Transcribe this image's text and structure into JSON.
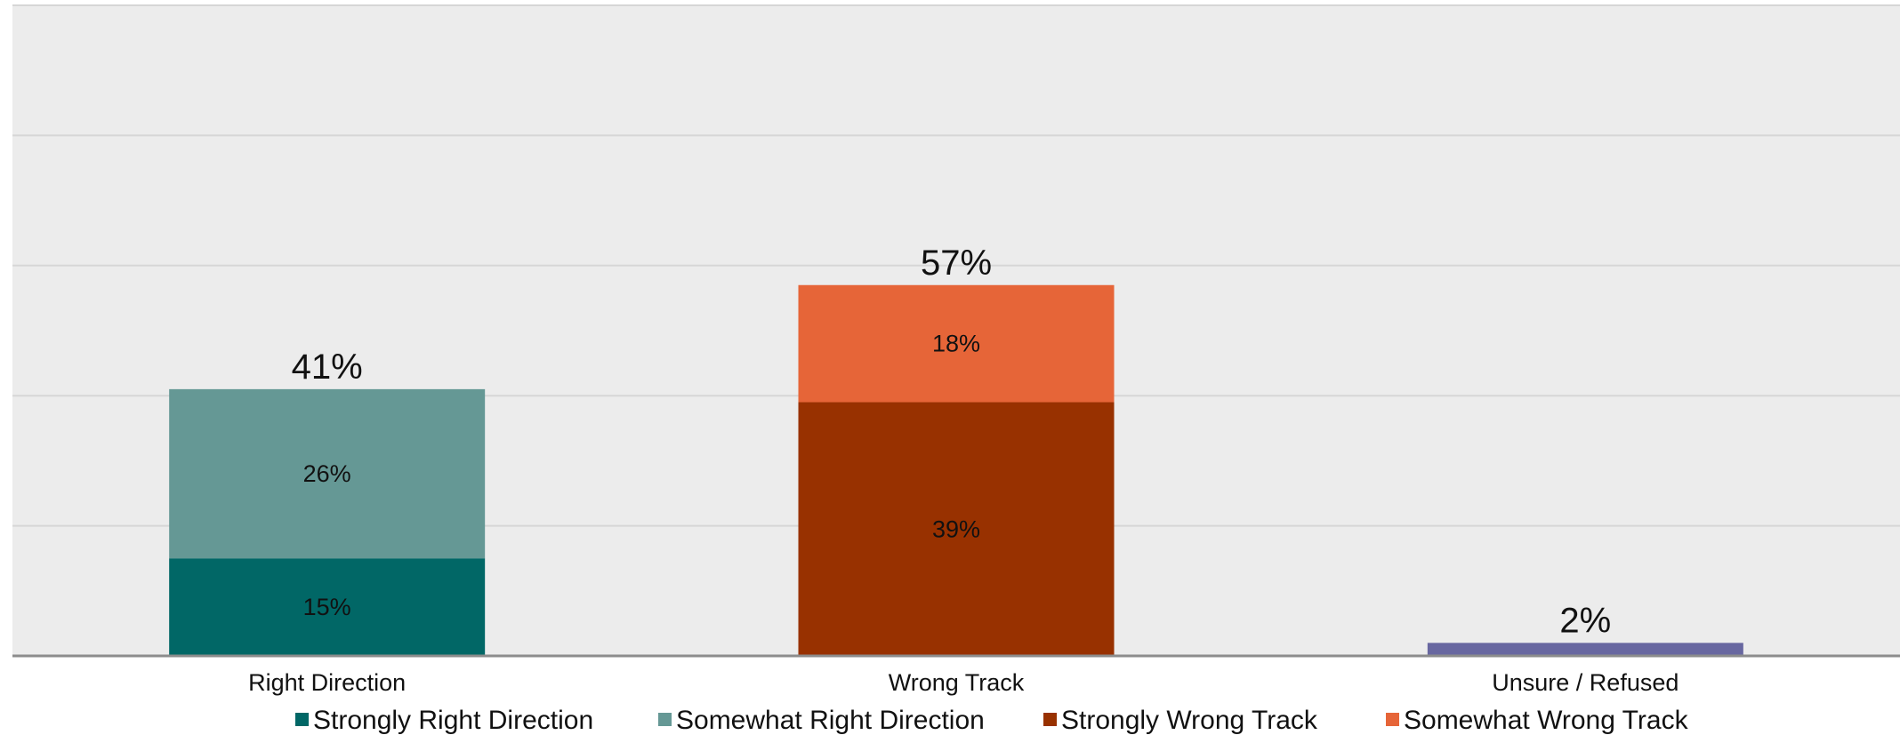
{
  "chart_data": {
    "type": "bar",
    "stacked": true,
    "categories": [
      "Right Direction",
      "Wrong Track",
      "Unsure / Refused"
    ],
    "ylim": [
      0,
      100
    ],
    "grid": true,
    "legend_position": "bottom",
    "series": [
      {
        "name": "Strongly Right Direction",
        "color": "#016766",
        "values": [
          15,
          0,
          0
        ],
        "labels": [
          "15%",
          "",
          ""
        ]
      },
      {
        "name": "Somewhat Right Direction",
        "color": "#659895",
        "values": [
          26,
          0,
          0
        ],
        "labels": [
          "26%",
          "",
          ""
        ]
      },
      {
        "name": "Strongly Wrong Track",
        "color": "#983100",
        "values": [
          0,
          39,
          0
        ],
        "labels": [
          "",
          "39%",
          ""
        ]
      },
      {
        "name": "Somewhat Wrong Track",
        "color": "#e66538",
        "values": [
          0,
          18,
          0
        ],
        "labels": [
          "",
          "18%",
          ""
        ]
      },
      {
        "name": "",
        "color": "#6867a0",
        "values": [
          0,
          0,
          2
        ],
        "labels": [
          "",
          "",
          ""
        ]
      }
    ],
    "totals": [
      41,
      57,
      2
    ],
    "total_labels": [
      "41%",
      "57%",
      "2%"
    ],
    "legend": [
      {
        "name": "Strongly Right Direction",
        "color": "#016766"
      },
      {
        "name": "Somewhat Right Direction",
        "color": "#659895"
      },
      {
        "name": "Strongly Wrong Track",
        "color": "#983100"
      },
      {
        "name": "Somewhat Wrong Track",
        "color": "#e66538"
      }
    ]
  },
  "colors": {
    "plot_background": "#ececec",
    "gridline": "#d6d6d6",
    "axis": "#8c8c8c"
  }
}
